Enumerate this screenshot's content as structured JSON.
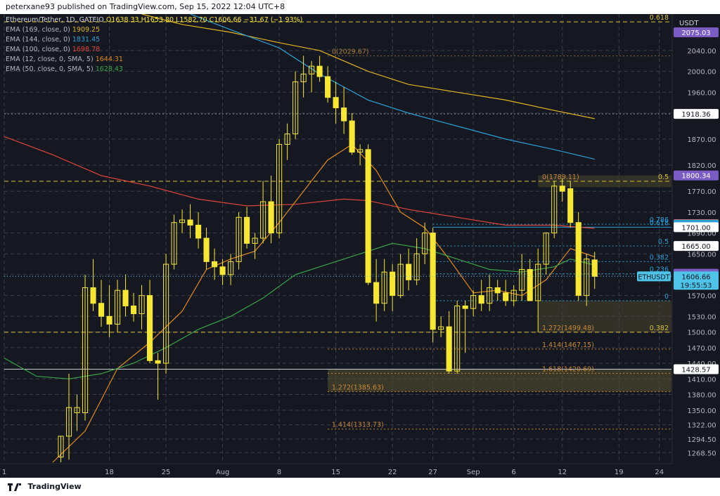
{
  "header": {
    "publish_line": "peterxane93 published on TradingView.com, Sep 15, 2022 12:04 UTC+8"
  },
  "footer": {
    "brand": "TradingView"
  },
  "legend": {
    "title": "Ethereum/Tether, 1D, GATEIO",
    "ohlc": "O1638.33  H1653.80  L1582.70  C1606.66  −31.67 (−1.93%)",
    "indicators": [
      {
        "label": "EMA (169, close, 0)",
        "value": "1909.25",
        "color": "#e0b41d"
      },
      {
        "label": "EMA (144, close, 0)",
        "value": "1831.45",
        "color": "#2a9fd6"
      },
      {
        "label": "EMA (100, close, 0)",
        "value": "1698.78",
        "color": "#e0453a"
      },
      {
        "label": "EMA (12, close, 0, SMA, 5)",
        "value": "1644.31",
        "color": "#e08a1e"
      },
      {
        "label": "EMA (50, close, 0, SMA, 5)",
        "value": "1628.43",
        "color": "#3aa34a"
      }
    ]
  },
  "colors": {
    "background": "#151821",
    "candle_up": "#f7e733",
    "candle_down": "#f7e733",
    "grid": "#3a3f4b",
    "fib_yellow": "#d8c13a",
    "fib_orange": "#c9893a",
    "fib_blue": "#2a9fd6"
  },
  "chart_data": {
    "type": "candlestick",
    "title": "Ethereum/Tether, 1D, GATEIO",
    "quote": "USDT",
    "symbol": "ETHUSDT",
    "ylim": [
      1250,
      2110
    ],
    "y_ticks": [
      1268.5,
      1294.5,
      1322.0,
      1350.0,
      1380.0,
      1410.0,
      1440.0,
      1470.0,
      1500.0,
      1530.0,
      1570.0,
      1610.0,
      1650.0,
      1690.0,
      1730.0,
      1770.0,
      1820.0,
      1870.0,
      1920.0,
      1960.0,
      2000.0,
      2040.0
    ],
    "x_ticks": [
      {
        "label": "1",
        "index": 0
      },
      {
        "label": "18",
        "index": 13
      },
      {
        "label": "25",
        "index": 20
      },
      {
        "label": "Aug",
        "index": 27
      },
      {
        "label": "8",
        "index": 34
      },
      {
        "label": "15",
        "index": 41
      },
      {
        "label": "22",
        "index": 48
      },
      {
        "label": "27",
        "index": 53
      },
      {
        "label": "Sep",
        "index": 58
      },
      {
        "label": "6",
        "index": 63
      },
      {
        "label": "12",
        "index": 69
      },
      {
        "label": "19",
        "index": 76
      },
      {
        "label": "24",
        "index": 81
      }
    ],
    "x_range": [
      0,
      82.5
    ],
    "candles": [
      {
        "i": 7,
        "o": 1260,
        "h": 1300,
        "l": 1250,
        "c": 1300
      },
      {
        "i": 8,
        "o": 1300,
        "h": 1420,
        "l": 1255,
        "c": 1355
      },
      {
        "i": 9,
        "o": 1345,
        "h": 1380,
        "l": 1310,
        "c": 1355
      },
      {
        "i": 10,
        "o": 1345,
        "h": 1610,
        "l": 1330,
        "c": 1585
      },
      {
        "i": 11,
        "o": 1585,
        "h": 1640,
        "l": 1540,
        "c": 1555
      },
      {
        "i": 12,
        "o": 1555,
        "h": 1600,
        "l": 1510,
        "c": 1530
      },
      {
        "i": 13,
        "o": 1530,
        "h": 1590,
        "l": 1490,
        "c": 1515
      },
      {
        "i": 14,
        "o": 1515,
        "h": 1600,
        "l": 1500,
        "c": 1580
      },
      {
        "i": 15,
        "o": 1580,
        "h": 1610,
        "l": 1530,
        "c": 1550
      },
      {
        "i": 16,
        "o": 1550,
        "h": 1575,
        "l": 1520,
        "c": 1535
      },
      {
        "i": 17,
        "o": 1535,
        "h": 1590,
        "l": 1505,
        "c": 1570
      },
      {
        "i": 18,
        "o": 1570,
        "h": 1600,
        "l": 1440,
        "c": 1445
      },
      {
        "i": 19,
        "o": 1445,
        "h": 1460,
        "l": 1370,
        "c": 1440
      },
      {
        "i": 20,
        "o": 1440,
        "h": 1650,
        "l": 1420,
        "c": 1630
      },
      {
        "i": 21,
        "o": 1630,
        "h": 1725,
        "l": 1620,
        "c": 1710
      },
      {
        "i": 22,
        "o": 1710,
        "h": 1735,
        "l": 1690,
        "c": 1715
      },
      {
        "i": 23,
        "o": 1715,
        "h": 1745,
        "l": 1680,
        "c": 1705
      },
      {
        "i": 24,
        "o": 1705,
        "h": 1730,
        "l": 1660,
        "c": 1680
      },
      {
        "i": 25,
        "o": 1680,
        "h": 1700,
        "l": 1620,
        "c": 1635
      },
      {
        "i": 26,
        "o": 1635,
        "h": 1660,
        "l": 1600,
        "c": 1625
      },
      {
        "i": 27,
        "o": 1625,
        "h": 1640,
        "l": 1590,
        "c": 1610
      },
      {
        "i": 28,
        "o": 1610,
        "h": 1650,
        "l": 1590,
        "c": 1635
      },
      {
        "i": 29,
        "o": 1635,
        "h": 1730,
        "l": 1620,
        "c": 1720
      },
      {
        "i": 30,
        "o": 1720,
        "h": 1740,
        "l": 1660,
        "c": 1670
      },
      {
        "i": 31,
        "o": 1670,
        "h": 1690,
        "l": 1640,
        "c": 1680
      },
      {
        "i": 32,
        "o": 1680,
        "h": 1790,
        "l": 1670,
        "c": 1750
      },
      {
        "i": 33,
        "o": 1750,
        "h": 1800,
        "l": 1670,
        "c": 1690
      },
      {
        "i": 34,
        "o": 1690,
        "h": 1870,
        "l": 1680,
        "c": 1860
      },
      {
        "i": 35,
        "o": 1860,
        "h": 1900,
        "l": 1830,
        "c": 1880
      },
      {
        "i": 36,
        "o": 1880,
        "h": 2000,
        "l": 1870,
        "c": 1980
      },
      {
        "i": 37,
        "o": 1980,
        "h": 2030,
        "l": 1950,
        "c": 1995
      },
      {
        "i": 38,
        "o": 1995,
        "h": 2020,
        "l": 1960,
        "c": 2010
      },
      {
        "i": 39,
        "o": 2010,
        "h": 2030,
        "l": 1980,
        "c": 1990
      },
      {
        "i": 40,
        "o": 1990,
        "h": 2010,
        "l": 1940,
        "c": 1950
      },
      {
        "i": 41,
        "o": 1950,
        "h": 1980,
        "l": 1900,
        "c": 1930
      },
      {
        "i": 42,
        "o": 1930,
        "h": 1970,
        "l": 1880,
        "c": 1905
      },
      {
        "i": 43,
        "o": 1905,
        "h": 1920,
        "l": 1840,
        "c": 1845
      },
      {
        "i": 44,
        "o": 1845,
        "h": 1860,
        "l": 1820,
        "c": 1850
      },
      {
        "i": 45,
        "o": 1850,
        "h": 1860,
        "l": 1590,
        "c": 1595
      },
      {
        "i": 46,
        "o": 1595,
        "h": 1640,
        "l": 1520,
        "c": 1555
      },
      {
        "i": 47,
        "o": 1555,
        "h": 1640,
        "l": 1540,
        "c": 1615
      },
      {
        "i": 48,
        "o": 1615,
        "h": 1630,
        "l": 1540,
        "c": 1570
      },
      {
        "i": 49,
        "o": 1570,
        "h": 1650,
        "l": 1565,
        "c": 1630
      },
      {
        "i": 50,
        "o": 1630,
        "h": 1660,
        "l": 1580,
        "c": 1600
      },
      {
        "i": 51,
        "o": 1600,
        "h": 1680,
        "l": 1590,
        "c": 1650
      },
      {
        "i": 52,
        "o": 1650,
        "h": 1710,
        "l": 1630,
        "c": 1690
      },
      {
        "i": 53,
        "o": 1690,
        "h": 1700,
        "l": 1480,
        "c": 1505
      },
      {
        "i": 54,
        "o": 1505,
        "h": 1530,
        "l": 1490,
        "c": 1510
      },
      {
        "i": 55,
        "o": 1510,
        "h": 1540,
        "l": 1420,
        "c": 1425
      },
      {
        "i": 56,
        "o": 1425,
        "h": 1560,
        "l": 1420,
        "c": 1550
      },
      {
        "i": 57,
        "o": 1550,
        "h": 1560,
        "l": 1460,
        "c": 1545
      },
      {
        "i": 58,
        "o": 1545,
        "h": 1580,
        "l": 1530,
        "c": 1570
      },
      {
        "i": 59,
        "o": 1570,
        "h": 1600,
        "l": 1540,
        "c": 1555
      },
      {
        "i": 60,
        "o": 1555,
        "h": 1610,
        "l": 1540,
        "c": 1585
      },
      {
        "i": 61,
        "o": 1585,
        "h": 1600,
        "l": 1560,
        "c": 1575
      },
      {
        "i": 62,
        "o": 1575,
        "h": 1600,
        "l": 1550,
        "c": 1560
      },
      {
        "i": 63,
        "o": 1560,
        "h": 1590,
        "l": 1550,
        "c": 1580
      },
      {
        "i": 64,
        "o": 1580,
        "h": 1650,
        "l": 1560,
        "c": 1620
      },
      {
        "i": 65,
        "o": 1620,
        "h": 1640,
        "l": 1560,
        "c": 1560
      },
      {
        "i": 66,
        "o": 1560,
        "h": 1660,
        "l": 1500,
        "c": 1630
      },
      {
        "i": 67,
        "o": 1630,
        "h": 1690,
        "l": 1610,
        "c": 1690
      },
      {
        "i": 68,
        "o": 1690,
        "h": 1790,
        "l": 1680,
        "c": 1780
      },
      {
        "i": 69,
        "o": 1780,
        "h": 1795,
        "l": 1750,
        "c": 1770
      },
      {
        "i": 70,
        "o": 1775,
        "h": 1790,
        "l": 1700,
        "c": 1710
      },
      {
        "i": 71,
        "o": 1710,
        "h": 1730,
        "l": 1560,
        "c": 1570
      },
      {
        "i": 72,
        "o": 1570,
        "h": 1650,
        "l": 1550,
        "c": 1640
      },
      {
        "i": 73,
        "o": 1638.33,
        "h": 1653.8,
        "l": 1582.7,
        "c": 1606.66
      }
    ],
    "ema_lines": [
      {
        "name": "EMA (169, close, 0)",
        "color": "#e0b41d",
        "points": [
          [
            17,
            2110
          ],
          [
            22,
            2090
          ],
          [
            28,
            2075
          ],
          [
            34,
            2055
          ],
          [
            39,
            2040
          ],
          [
            45,
            2000
          ],
          [
            50,
            1975
          ],
          [
            56,
            1960
          ],
          [
            62,
            1945
          ],
          [
            68,
            1925
          ],
          [
            73,
            1909.25
          ]
        ]
      },
      {
        "name": "EMA (144, close, 0)",
        "color": "#2a9fd6",
        "points": [
          [
            23,
            2110
          ],
          [
            28,
            2080
          ],
          [
            34,
            2045
          ],
          [
            39,
            1995
          ],
          [
            45,
            1945
          ],
          [
            50,
            1920
          ],
          [
            56,
            1895
          ],
          [
            62,
            1870
          ],
          [
            68,
            1850
          ],
          [
            73,
            1831.45
          ]
        ]
      },
      {
        "name": "EMA (100, close, 0)",
        "color": "#e0453a",
        "points": [
          [
            0,
            1875
          ],
          [
            6,
            1840
          ],
          [
            12,
            1800
          ],
          [
            18,
            1780
          ],
          [
            24,
            1755
          ],
          [
            30,
            1742
          ],
          [
            36,
            1745
          ],
          [
            42,
            1755
          ],
          [
            45,
            1752
          ],
          [
            50,
            1735
          ],
          [
            56,
            1720
          ],
          [
            62,
            1705
          ],
          [
            68,
            1705
          ],
          [
            73,
            1698.78
          ]
        ]
      },
      {
        "name": "EMA (12, close, 0, SMA, 5)",
        "color": "#e08a1e",
        "points": [
          [
            6,
            1250
          ],
          [
            10,
            1310
          ],
          [
            14,
            1430
          ],
          [
            18,
            1480
          ],
          [
            22,
            1540
          ],
          [
            25,
            1620
          ],
          [
            28,
            1640
          ],
          [
            31,
            1655
          ],
          [
            34,
            1710
          ],
          [
            37,
            1770
          ],
          [
            40,
            1830
          ],
          [
            43,
            1860
          ],
          [
            46,
            1810
          ],
          [
            49,
            1730
          ],
          [
            52,
            1700
          ],
          [
            55,
            1640
          ],
          [
            58,
            1575
          ],
          [
            61,
            1580
          ],
          [
            64,
            1570
          ],
          [
            67,
            1600
          ],
          [
            70,
            1660
          ],
          [
            73,
            1644.31
          ]
        ]
      },
      {
        "name": "EMA (50, close, 0, SMA, 5)",
        "color": "#3aa34a",
        "points": [
          [
            0,
            1450
          ],
          [
            4,
            1415
          ],
          [
            8,
            1410
          ],
          [
            12,
            1420
          ],
          [
            16,
            1440
          ],
          [
            20,
            1470
          ],
          [
            24,
            1505
          ],
          [
            28,
            1530
          ],
          [
            32,
            1565
          ],
          [
            36,
            1610
          ],
          [
            40,
            1630
          ],
          [
            44,
            1650
          ],
          [
            48,
            1670
          ],
          [
            52,
            1660
          ],
          [
            56,
            1640
          ],
          [
            60,
            1620
          ],
          [
            64,
            1615
          ],
          [
            68,
            1625
          ],
          [
            70,
            1640
          ],
          [
            73,
            1628.43
          ]
        ]
      }
    ],
    "horizontal_lines": [
      {
        "price": 2095,
        "style": "dashed",
        "color": "#d8c13a",
        "label": "0.618",
        "label_side": "right"
      },
      {
        "price": 2029.67,
        "style": "dotted",
        "color": "#8a6a35",
        "label": "0(2029.67)",
        "label_side": "left"
      },
      {
        "price": 1918.36,
        "style": "dotted",
        "color": "#8c8f97",
        "label": "",
        "label_side": "none"
      },
      {
        "price": 1789.11,
        "style": "dashed",
        "color": "#d8c13a",
        "label": "0.5",
        "label_side": "right"
      },
      {
        "price": 1789.11,
        "style": "none",
        "color": "#c9893a",
        "label": "0(1789.11)",
        "label_side": "left2"
      },
      {
        "price": 1706.8,
        "style": "dotted",
        "color": "#2a9fd6",
        "label": "0.786",
        "label_side": "right"
      },
      {
        "price": 1701.0,
        "style": "solid",
        "color": "#2a9fd6",
        "label": "0.618",
        "label_side": "right"
      },
      {
        "price": 1665.0,
        "style": "dotted",
        "color": "#2a9fd6",
        "label": "0.5",
        "label_side": "right"
      },
      {
        "price": 1635,
        "style": "dotted",
        "color": "#2a9fd6",
        "label": "0.382",
        "label_side": "right"
      },
      {
        "price": 1611.82,
        "style": "dotted",
        "color": "#2a9fd6",
        "label": "0.236",
        "label_side": "right"
      },
      {
        "price": 1560,
        "style": "dotted",
        "color": "#2a9fd6",
        "label": "0",
        "label_side": "right"
      },
      {
        "price": 1499.48,
        "style": "dashed",
        "color": "#d8c13a",
        "label": "0.382",
        "label_side": "right"
      },
      {
        "price": 1499.48,
        "style": "none",
        "color": "#c9893a",
        "label": "1.272(1499.48)",
        "label_side": "left2"
      },
      {
        "price": 1467.15,
        "style": "dotted",
        "color": "#c9893a",
        "label": "1.414(1467.15)",
        "label_side": "left2"
      },
      {
        "price": 1428.57,
        "style": "solid",
        "color": "#c8cbd2",
        "label": "",
        "label_side": "none"
      },
      {
        "price": 1420.69,
        "style": "dotted",
        "color": "#c9893a",
        "label": "1.618(1420.69)",
        "label_side": "left2"
      },
      {
        "price": 1385.63,
        "style": "dotted",
        "color": "#c9893a",
        "label": "1.272(1385.63)",
        "label_side": "left"
      },
      {
        "price": 1313.73,
        "style": "dotted",
        "color": "#c9893a",
        "label": "1.414(1313.73)",
        "label_side": "left"
      }
    ],
    "zones": [
      {
        "x_from": 40,
        "x_to": 82.5,
        "y_from": 1428.57,
        "y_to": 1385.63,
        "color": "#5a5330"
      },
      {
        "x_from": 66,
        "x_to": 82.5,
        "y_from": 1560,
        "y_to": 1499.48,
        "color": "#4a4730"
      },
      {
        "x_from": 66,
        "x_to": 82.5,
        "y_from": 1800.34,
        "y_to": 1778,
        "color": "#4a4730"
      }
    ],
    "price_tags": [
      {
        "price": 2075.03,
        "text": "2075.03",
        "bg": "#7b5cc4",
        "fg": "#ffffff"
      },
      {
        "price": 1918.36,
        "text": "1918.36",
        "bg": "#ffffff",
        "fg": "#131722"
      },
      {
        "price": 1800.34,
        "text": "1800.34",
        "bg": "#7b5cc4",
        "fg": "#ffffff"
      },
      {
        "price": 1706.8,
        "text": "1706.80",
        "bg": "#e07b6e",
        "fg": "#131722"
      },
      {
        "price": 1705.75,
        "text": "1705.75",
        "bg": "#2a9fd6",
        "fg": "#ffffff"
      },
      {
        "price": 1701.0,
        "text": "1701.00",
        "bg": "#ffffff",
        "fg": "#131722"
      },
      {
        "price": 1665.0,
        "text": "1665.00",
        "bg": "#ffffff",
        "fg": "#131722"
      },
      {
        "price": 1611.82,
        "text": "1611.82",
        "bg": "#7b5cc4",
        "fg": "#ffffff"
      },
      {
        "price": 1428.57,
        "text": "1428.57",
        "bg": "#ffffff",
        "fg": "#131722"
      }
    ],
    "current_price": {
      "price": 1606.66,
      "text": "1606.66",
      "countdown": "19:55:53",
      "symbol_tag": "ETHUSDT",
      "bg": "#4fc3e8"
    }
  }
}
